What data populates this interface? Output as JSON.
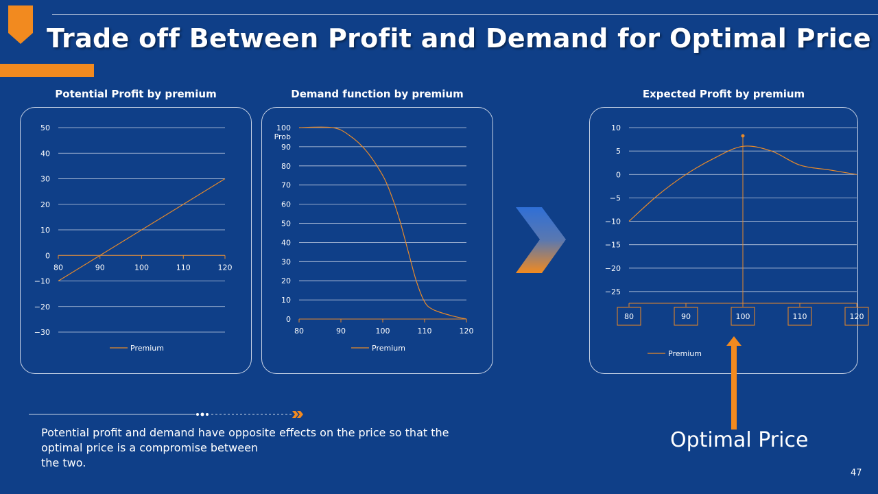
{
  "slide": {
    "title": "Trade off Between Profit and Demand for Optimal Price",
    "description": "Potential profit and demand have opposite effects on the price so that the optimal price is a compromise between the two.",
    "description_lines": [
      "Potential profit and demand have opposite effects on the price so that the",
      "optimal price is a compromise between",
      "the two."
    ],
    "optimal_label": "Optimal Price",
    "page_number": "47"
  },
  "colors": {
    "background": "#0f3f88",
    "accent": "#f28a1f",
    "line": "#e88a2a",
    "grid": "#c9d4e6"
  },
  "chart_data": [
    {
      "type": "line",
      "title": "Potential Profit by premium",
      "x": [
        80,
        90,
        100,
        110,
        120
      ],
      "series": [
        {
          "name": "Premium",
          "values": [
            -10,
            0,
            10,
            20,
            30
          ]
        }
      ],
      "xticks": [
        "80",
        "90",
        "100",
        "110",
        "120"
      ],
      "yticks": [
        50,
        40,
        30,
        20,
        10,
        0,
        -10,
        -20,
        -30
      ],
      "ylim": [
        -30,
        50
      ],
      "xlim": [
        80,
        120
      ],
      "legend": "Premium",
      "legend_position": "bottom"
    },
    {
      "type": "line",
      "title": "Demand function by premium",
      "x": [
        80,
        88,
        92,
        96,
        100,
        102,
        104,
        106,
        108,
        110,
        112,
        116,
        120
      ],
      "series": [
        {
          "name": "Premium",
          "values": [
            100,
            100,
            96,
            88,
            75,
            65,
            52,
            36,
            20,
            9,
            5,
            2,
            0
          ]
        }
      ],
      "xticks": [
        "80",
        "90",
        "100",
        "110",
        "120"
      ],
      "yticks": [
        100,
        90,
        80,
        70,
        60,
        50,
        40,
        30,
        20,
        10,
        0
      ],
      "ylim": [
        0,
        100
      ],
      "xlim": [
        80,
        120
      ],
      "annotation": "Prob",
      "legend": "Premium",
      "legend_position": "bottom"
    },
    {
      "type": "line",
      "title": "Expected Profit by premium",
      "x": [
        80,
        85,
        90,
        95,
        100,
        105,
        110,
        115,
        120
      ],
      "series": [
        {
          "name": "Premium",
          "values": [
            -10,
            -4.5,
            0,
            3.5,
            6,
            5,
            2,
            1,
            0
          ]
        }
      ],
      "xticks": [
        "80",
        "90",
        "100",
        "110",
        "120"
      ],
      "yticks": [
        10,
        5,
        0,
        -5,
        -10,
        -15,
        -20,
        -25
      ],
      "ylim": [
        -27.5,
        10
      ],
      "xlim": [
        80,
        120
      ],
      "optimal_x": 100,
      "legend": "Premium",
      "legend_position": "bottom"
    }
  ]
}
